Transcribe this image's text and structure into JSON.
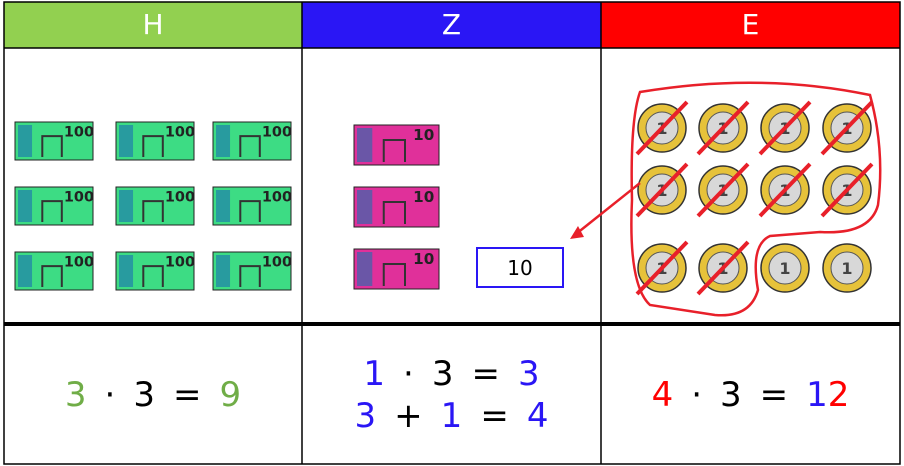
{
  "table": {
    "headers": [
      {
        "label": "H",
        "color": "#92d050"
      },
      {
        "label": "Z",
        "color": "#2a16f5"
      },
      {
        "label": "E",
        "color": "#ff0000"
      }
    ],
    "hundreds": {
      "count": 9,
      "note_label": "100",
      "color": "#3ddc84"
    },
    "tens": {
      "count": 3,
      "note_label": "10",
      "color": "#e0309a",
      "box_label": "10",
      "box_color": "#2a16f5"
    },
    "ones": {
      "count": 12,
      "crossed": 10,
      "coin_label": "1",
      "mark_color": "#e8202a"
    },
    "equations": [
      [
        [
          [
            {
              "text": "3",
              "color": "#70ad47"
            }
          ],
          [
            {
              "text": "·",
              "color": "#000000"
            }
          ],
          [
            {
              "text": "3",
              "color": "#000000"
            }
          ],
          [
            {
              "text": "=",
              "color": "#000000"
            }
          ],
          [
            {
              "text": "9",
              "color": "#70ad47"
            }
          ]
        ]
      ],
      [
        [
          [
            {
              "text": "1",
              "color": "#2a16f5"
            }
          ],
          [
            {
              "text": "·",
              "color": "#000000"
            }
          ],
          [
            {
              "text": "3",
              "color": "#000000"
            }
          ],
          [
            {
              "text": "=",
              "color": "#000000"
            }
          ],
          [
            {
              "text": "3",
              "color": "#2a16f5"
            }
          ]
        ],
        [
          [
            {
              "text": "3",
              "color": "#2a16f5"
            }
          ],
          [
            {
              "text": "+",
              "color": "#000000"
            }
          ],
          [
            {
              "text": "1",
              "color": "#2a16f5"
            }
          ],
          [
            {
              "text": "=",
              "color": "#000000"
            }
          ],
          [
            {
              "text": "4",
              "color": "#2a16f5"
            }
          ]
        ]
      ],
      [
        [
          [
            {
              "text": "4",
              "color": "#ff0000"
            }
          ],
          [
            {
              "text": "·",
              "color": "#000000"
            }
          ],
          [
            {
              "text": "3",
              "color": "#000000"
            }
          ],
          [
            {
              "text": "=",
              "color": "#000000"
            }
          ],
          [
            {
              "text": "1",
              "color": "#2a16f5"
            },
            {
              "text": "2",
              "color": "#ff0000"
            }
          ]
        ]
      ]
    ]
  }
}
